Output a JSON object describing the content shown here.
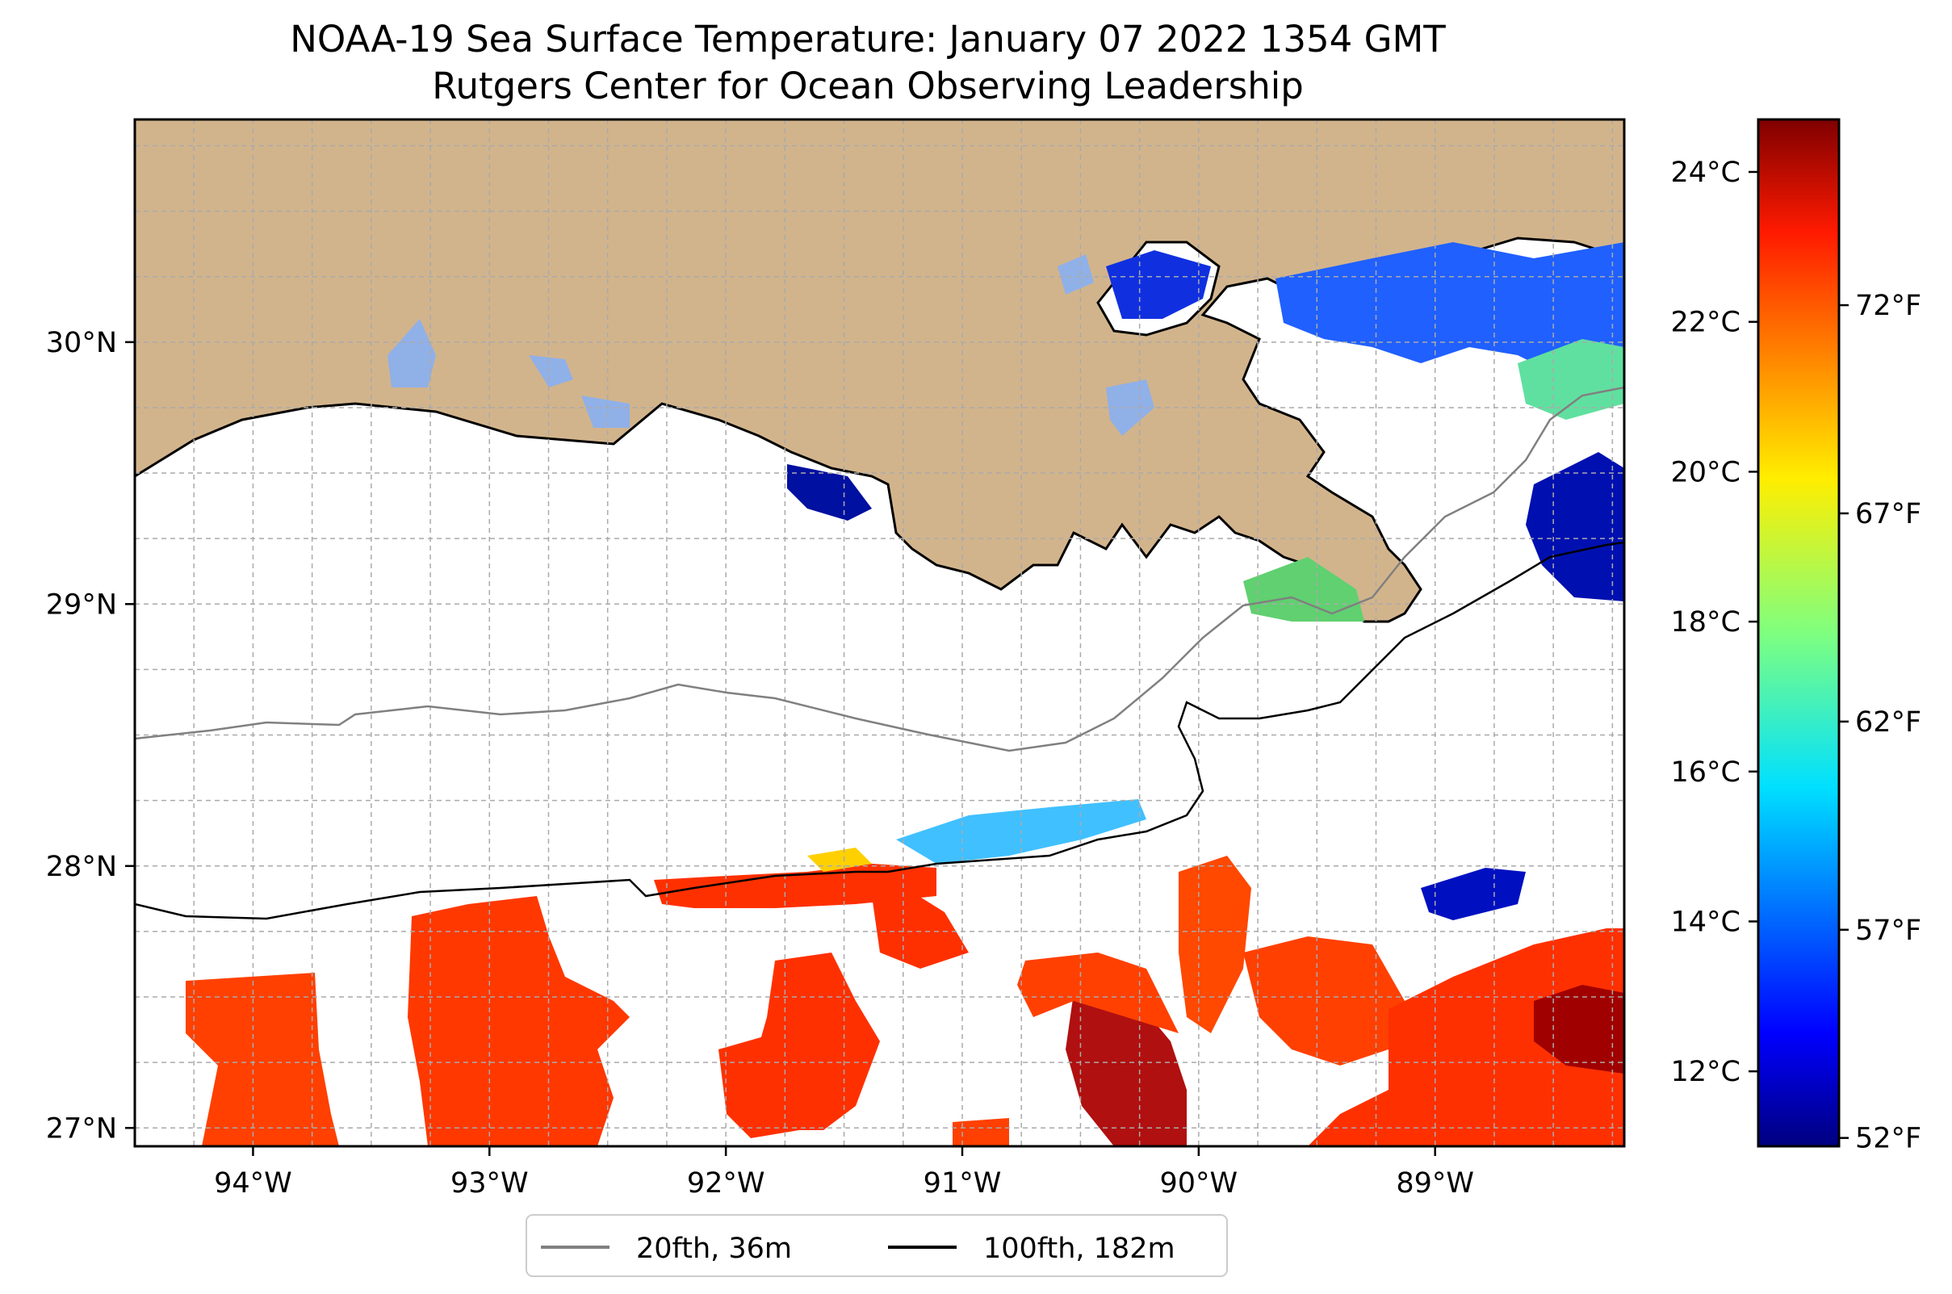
{
  "title": {
    "line1": "NOAA-19 Sea Surface Temperature: January 07 2022 1354 GMT",
    "line2": "Rutgers Center for Ocean Observing Leadership"
  },
  "map": {
    "lon_range": [
      -94.5,
      -88.2
    ],
    "lat_range": [
      26.93,
      30.85
    ],
    "lon_ticks": [
      {
        "value": -94,
        "label": "94°W"
      },
      {
        "value": -93,
        "label": "93°W"
      },
      {
        "value": -92,
        "label": "92°W"
      },
      {
        "value": -91,
        "label": "91°W"
      },
      {
        "value": -90,
        "label": "90°W"
      },
      {
        "value": -89,
        "label": "89°W"
      }
    ],
    "lat_ticks": [
      {
        "value": 27,
        "label": "27°N"
      },
      {
        "value": 28,
        "label": "28°N"
      },
      {
        "value": 29,
        "label": "29°N"
      },
      {
        "value": 30,
        "label": "30°N"
      }
    ],
    "land_color": "#d2b48c",
    "gridlines": "dashed"
  },
  "colorbar": {
    "colormap": "jet",
    "celsius_range": [
      11.0,
      24.7
    ],
    "celsius_ticks": [
      {
        "value": 12,
        "label": "12°C"
      },
      {
        "value": 14,
        "label": "14°C"
      },
      {
        "value": 16,
        "label": "16°C"
      },
      {
        "value": 18,
        "label": "18°C"
      },
      {
        "value": 20,
        "label": "20°C"
      },
      {
        "value": 22,
        "label": "22°C"
      },
      {
        "value": 24,
        "label": "24°C"
      }
    ],
    "fahrenheit_ticks": [
      {
        "value": 52,
        "label": "52°F"
      },
      {
        "value": 57,
        "label": "57°F"
      },
      {
        "value": 62,
        "label": "62°F"
      },
      {
        "value": 67,
        "label": "67°F"
      },
      {
        "value": 72,
        "label": "72°F"
      }
    ]
  },
  "legend": {
    "items": [
      {
        "label": "20fth, 36m",
        "color": "#808080"
      },
      {
        "label": "100fth, 182m",
        "color": "#000000"
      }
    ]
  }
}
